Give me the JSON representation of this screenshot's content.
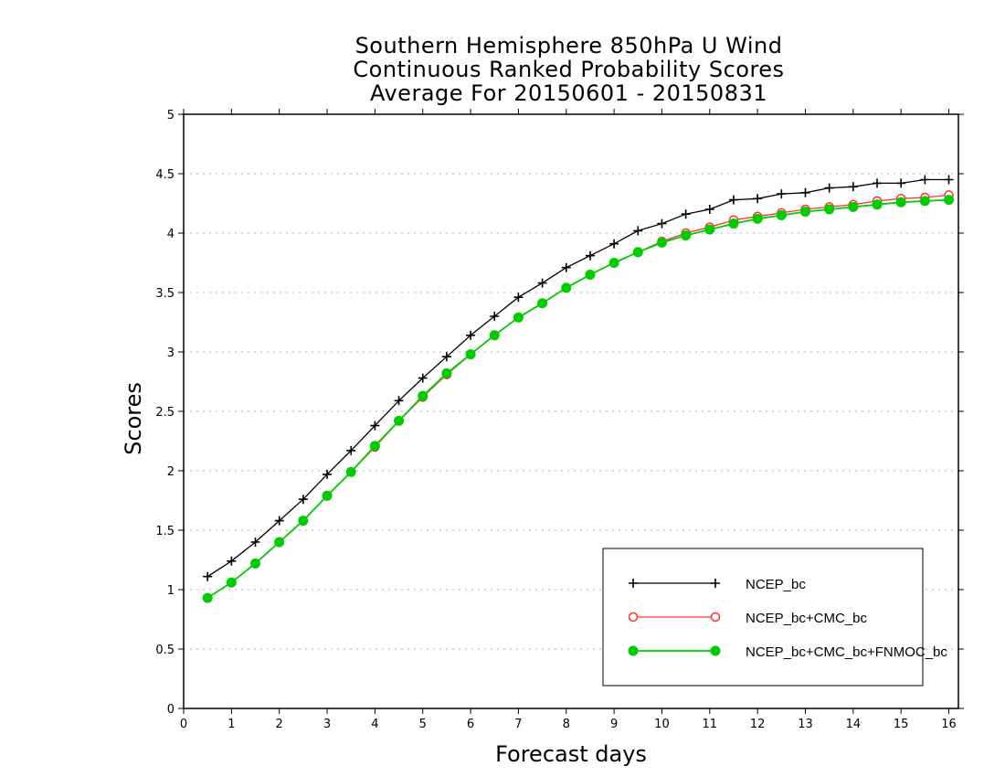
{
  "chart_data": {
    "type": "line",
    "title": [
      "Southern Hemisphere 850hPa U Wind",
      "Continuous Ranked Probability Scores",
      "Average For 20150601 - 20150831"
    ],
    "xlabel": "Forecast days",
    "ylabel": "Scores",
    "xlim": [
      0,
      16.2
    ],
    "ylim": [
      0,
      5
    ],
    "xticks": [
      "0",
      "1",
      "2",
      "3",
      "4",
      "5",
      "6",
      "7",
      "8",
      "9",
      "10",
      "11",
      "12",
      "13",
      "14",
      "15",
      "16"
    ],
    "yticks": [
      "0",
      "0.5",
      "1",
      "1.5",
      "2",
      "2.5",
      "3",
      "3.5",
      "4",
      "4.5",
      "5"
    ],
    "grid": "horizontal dotted",
    "legend_position": "bottom-right",
    "x": [
      0.5,
      1,
      1.5,
      2,
      2.5,
      3,
      3.5,
      4,
      4.5,
      5,
      5.5,
      6,
      6.5,
      7,
      7.5,
      8,
      8.5,
      9,
      9.5,
      10,
      10.5,
      11,
      11.5,
      12,
      12.5,
      13,
      13.5,
      14,
      14.5,
      15,
      15.5,
      16
    ],
    "series": [
      {
        "name": "NCEP_bc",
        "color": "#000000",
        "marker": "plus",
        "values": [
          1.11,
          1.24,
          1.4,
          1.58,
          1.76,
          1.97,
          2.17,
          2.38,
          2.59,
          2.78,
          2.96,
          3.14,
          3.3,
          3.46,
          3.58,
          3.71,
          3.81,
          3.91,
          4.02,
          4.08,
          4.16,
          4.2,
          4.28,
          4.29,
          4.33,
          4.34,
          4.38,
          4.39,
          4.42,
          4.42,
          4.45,
          4.45
        ]
      },
      {
        "name": "NCEP_bc+CMC_bc",
        "color": "#ff3030",
        "marker": "open-circle",
        "values": [
          0.93,
          1.06,
          1.22,
          1.4,
          1.58,
          1.79,
          1.99,
          2.2,
          2.42,
          2.62,
          2.81,
          2.98,
          3.14,
          3.29,
          3.41,
          3.54,
          3.65,
          3.75,
          3.84,
          3.93,
          4.0,
          4.05,
          4.11,
          4.14,
          4.17,
          4.2,
          4.22,
          4.24,
          4.27,
          4.29,
          4.3,
          4.32
        ]
      },
      {
        "name": "NCEP_bc+CMC_bc+FNMOC_bc",
        "color": "#00cc00",
        "marker": "filled-circle",
        "values": [
          0.93,
          1.06,
          1.22,
          1.4,
          1.58,
          1.79,
          1.99,
          2.21,
          2.42,
          2.63,
          2.82,
          2.98,
          3.14,
          3.29,
          3.41,
          3.54,
          3.65,
          3.75,
          3.84,
          3.92,
          3.98,
          4.03,
          4.08,
          4.12,
          4.15,
          4.18,
          4.2,
          4.22,
          4.24,
          4.26,
          4.27,
          4.28
        ]
      }
    ]
  }
}
